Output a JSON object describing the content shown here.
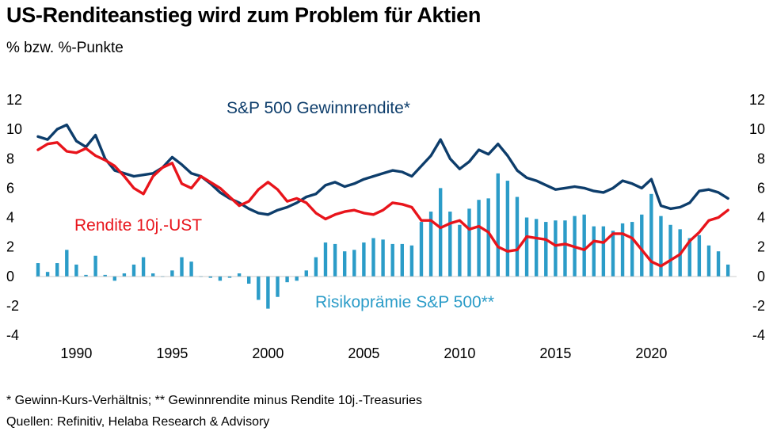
{
  "header": {
    "title": "US-Renditeanstieg wird zum Problem für Aktien",
    "subtitle": "% bzw. %-Punkte"
  },
  "footer": {
    "note": "* Gewinn-Kurs-Verhältnis; ** Gewinnrendite minus Rendite 10j.-Treasuries",
    "source": "Quellen: Refinitiv, Helaba Research & Advisory"
  },
  "chart_data": {
    "type": "line",
    "title": "US-Renditeanstieg wird zum Problem für Aktien",
    "ylabel": "% bzw. %-Punkte",
    "ylim": [
      -4,
      12
    ],
    "xlim": [
      1988.0,
      2024.2
    ],
    "y_ticks": [
      12,
      10,
      8,
      6,
      4,
      2,
      0,
      -2,
      -4
    ],
    "x_ticks": [
      "1990",
      "1995",
      "2000",
      "2005",
      "2010",
      "2015",
      "2020"
    ],
    "grid": false,
    "colors": {
      "sp500": "#0d3d6b",
      "ust": "#e8141b",
      "premium": "#2b9cc8"
    },
    "x": [
      1988.0,
      1988.5,
      1989.0,
      1989.5,
      1990.0,
      1990.5,
      1991.0,
      1991.5,
      1992.0,
      1992.5,
      1993.0,
      1993.5,
      1994.0,
      1994.5,
      1995.0,
      1995.5,
      1996.0,
      1996.5,
      1997.0,
      1997.5,
      1998.0,
      1998.5,
      1999.0,
      1999.5,
      2000.0,
      2000.5,
      2001.0,
      2001.5,
      2002.0,
      2002.5,
      2003.0,
      2003.5,
      2004.0,
      2004.5,
      2005.0,
      2005.5,
      2006.0,
      2006.5,
      2007.0,
      2007.5,
      2008.0,
      2008.5,
      2009.0,
      2009.5,
      2010.0,
      2010.5,
      2011.0,
      2011.5,
      2012.0,
      2012.5,
      2013.0,
      2013.5,
      2014.0,
      2014.5,
      2015.0,
      2015.5,
      2016.0,
      2016.5,
      2017.0,
      2017.5,
      2018.0,
      2018.5,
      2019.0,
      2019.5,
      2020.0,
      2020.5,
      2021.0,
      2021.5,
      2022.0,
      2022.5,
      2023.0,
      2023.5,
      2024.0
    ],
    "series": [
      {
        "name": "S&P 500 Gewinnrendite*",
        "values": [
          9.5,
          9.3,
          10.0,
          10.3,
          9.2,
          8.8,
          9.6,
          8.0,
          7.2,
          7.0,
          6.8,
          6.9,
          7.0,
          7.4,
          8.1,
          7.6,
          7.0,
          6.8,
          6.3,
          5.7,
          5.3,
          5.0,
          4.6,
          4.3,
          4.2,
          4.5,
          4.7,
          5.0,
          5.4,
          5.6,
          6.2,
          6.4,
          6.1,
          6.3,
          6.6,
          6.8,
          7.0,
          7.2,
          7.1,
          6.8,
          7.5,
          8.2,
          9.3,
          8.0,
          7.3,
          7.8,
          8.6,
          8.3,
          9.0,
          8.2,
          7.2,
          6.7,
          6.5,
          6.2,
          5.9,
          6.0,
          6.1,
          6.0,
          5.8,
          5.7,
          6.0,
          6.5,
          6.3,
          6.0,
          6.6,
          4.8,
          4.6,
          4.7,
          5.0,
          5.8,
          5.9,
          5.7,
          5.3
        ]
      },
      {
        "name": "Rendite 10j.-UST",
        "values": [
          8.6,
          9.0,
          9.1,
          8.5,
          8.4,
          8.7,
          8.2,
          7.9,
          7.5,
          6.8,
          6.0,
          5.6,
          6.8,
          7.4,
          7.7,
          6.3,
          6.0,
          6.8,
          6.4,
          6.0,
          5.4,
          4.8,
          5.1,
          5.9,
          6.4,
          5.9,
          5.1,
          5.3,
          5.0,
          4.3,
          3.9,
          4.2,
          4.4,
          4.5,
          4.3,
          4.2,
          4.5,
          5.0,
          4.9,
          4.7,
          3.8,
          3.8,
          3.3,
          3.6,
          3.8,
          3.2,
          3.4,
          3.0,
          2.0,
          1.7,
          1.8,
          2.7,
          2.6,
          2.5,
          2.1,
          2.2,
          2.0,
          1.8,
          2.4,
          2.3,
          2.9,
          2.9,
          2.6,
          1.8,
          1.0,
          0.7,
          1.1,
          1.5,
          2.4,
          3.0,
          3.8,
          4.0,
          4.5
        ]
      },
      {
        "name": "Risikoprämie S&P 500**",
        "values": [
          0.9,
          0.3,
          0.9,
          1.8,
          0.8,
          0.1,
          1.4,
          0.1,
          -0.3,
          0.2,
          0.8,
          1.3,
          0.2,
          0.0,
          0.4,
          1.3,
          1.0,
          0.0,
          -0.1,
          -0.3,
          -0.1,
          0.2,
          -0.5,
          -1.6,
          -2.2,
          -1.4,
          -0.4,
          -0.3,
          0.4,
          1.3,
          2.3,
          2.2,
          1.7,
          1.8,
          2.3,
          2.6,
          2.5,
          2.2,
          2.2,
          2.1,
          3.7,
          4.4,
          6.0,
          4.4,
          3.5,
          4.6,
          5.2,
          5.3,
          7.0,
          6.5,
          5.4,
          4.0,
          3.9,
          3.7,
          3.8,
          3.8,
          4.1,
          4.2,
          3.4,
          3.4,
          3.1,
          3.6,
          3.7,
          4.2,
          5.6,
          4.1,
          3.5,
          3.2,
          2.6,
          2.8,
          2.1,
          1.7,
          0.8
        ]
      }
    ]
  }
}
